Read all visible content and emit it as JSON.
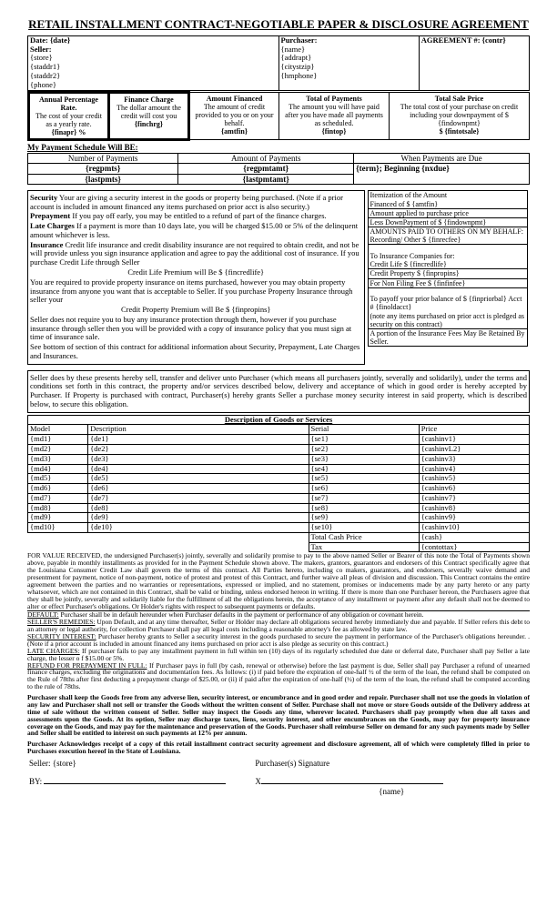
{
  "title": "RETAIL INSTALLMENT CONTRACT-NEGOTIABLE PAPER & DISCLOSURE AGREEMENT",
  "header": {
    "date_label": "Date:",
    "date": "{date}",
    "seller_label": "Seller:",
    "store": "{store}",
    "staddr1": "{staddr1}",
    "staddr2": "{staddr2}",
    "phone": "{phone}",
    "purchaser_label": "Purchaser:",
    "name": "{name}",
    "addrapt": "{addrapt}",
    "citystzip": "{citystzip}",
    "hmphone": "{hmphone}",
    "agreement_label": "AGREEMENT #:",
    "contr": "{contr}"
  },
  "tila": {
    "apr_head": "Annual Percentage Rate.",
    "apr_desc": "The cost of your credit as a yearly rate.",
    "apr_val": "{finapr}   %",
    "fc_head": "Finance Charge",
    "fc_desc": "The dollar amount the credit will cost you",
    "fc_val": "{finchrg}",
    "af_head": "Amount Financed",
    "af_desc": "The amount of credit provided to you or on your behalf.",
    "af_val": "{amtfin}",
    "top_head": "Total of Payments",
    "top_desc": "The amount you will have paid after you have made all payments as scheduled.",
    "top_val": "{fintop}",
    "tsp_head": "Total Sale Price",
    "tsp_desc": "The total cost of your purchase on credit including your downpayment of $ {findownpmt}",
    "tsp_val": "$ {fintotsale}"
  },
  "schedule": {
    "title": "My Payment Schedule Will BE:",
    "col1": "Number of Payments",
    "col2": "Amount of Payments",
    "col3": "When Payments are Due",
    "regpmts": "{regpmts}",
    "regpmtamt": "{regpmtamt}",
    "term_line": "{term}; Beginning  {nxdue}",
    "lastpmts": "{lastpmts}",
    "lastpmtamt": "{lastpmtamt}"
  },
  "security": {
    "sec_bold": "Security",
    "sec_text": "  Your are giving a security interest in the goods or property being purchased.  (Note if a prior account is included in amount financed any items purchased on prior acct is also security.)",
    "pre_bold": "Prepayment",
    "pre_text": "  If you pay off early, you may be entitled to a refund of part of the finance charges.",
    "late_bold": "Late Charges",
    "late_text": "  If a payment is more than 10 days late, you will be charged $15.00 or 5% of the delinquent amount whichever is less.",
    "ins_bold": "Insurance",
    "ins_text": "  Credit life insurance and credit disability insurance are not required to obtain credit, and not be will provide unless you sign insurance application  and agree to pay the additional cost of insurance.      If you purchase Credit Life through Seller",
    "cl_prem": "Credit Life Premium will Be  $ {fincredlife}",
    "prop_text": "You are required to provide property insurance on items purchased, however you may obtain property insurance from anyone you want that is acceptable to Seller.  If you purchase Property Insurance through seller your",
    "cp_prem": "Credit Property Premium will Be  $ {finpropins}",
    "seller_text": "Seller does not require you to buy any insurance protection through them, however if you purchase insurance through seller then you will be provided with a copy of insurance policy that you must sign at time of insurance sale.",
    "bottom_text": "See bottom of section of this contract for additional information about Security, Prepayment, Late Charges and Insurances."
  },
  "finbox": {
    "h1": "Itemization of the Amount",
    "h2": "Financed of                          $    {amtfin}",
    "amt_applied": "Amount applied to purchase price",
    "less_down": "Less DownPayment of    $  {findownpmt}",
    "amts_paid": "AMOUNTS PAID TO OTHERS ON MY BEHALF:",
    "rec_other": "Recording/ Other             $ {finrecfee}",
    "to_ins": "To Insurance Companies for:",
    "cl": "Credit Life                       $ {fincredlife}",
    "cp": "Credit Property               $ {finpropins}",
    "nf": "For Non Filing  Fee          $ {finfinfee}",
    "payoff": "To payoff your prior balance of  $ {finpriorbal}   Acct # {finoldacct}",
    "payoff_note": "(note any items purchased on prior acct is pledged as security on this contract)",
    "portion": "A portion of the Insurance Fees May Be Retained By Seller."
  },
  "transfer_para": "Seller does by these presents hereby sell, transfer and deliver unto Purchaser (which means all purchasers jointly, severally and solidarily), under the terms and conditions set forth in this contract, the property and/or services described below, delivery and acceptance of which in good order is hereby accepted by Purchaser.  If Property is purchased with contract, Purchaser(s) hereby grants Seller a purchase money security interest in said property, which is described below, to secure this obligation.",
  "goods": {
    "title": "Description of Goods or Services",
    "cols": {
      "model": "Model",
      "desc": "Description",
      "serial": "Serial",
      "price": "Price"
    },
    "rows": [
      {
        "m": "{md1}",
        "d": "{de1}",
        "s": "{se1}",
        "p": "{cashinv1}"
      },
      {
        "m": "{md2}",
        "d": "{de2}",
        "s": "{se2}",
        "p": "{cashinvL2}"
      },
      {
        "m": "{md3}",
        "d": "{de3}",
        "s": "{se3}",
        "p": "{cashinv3}"
      },
      {
        "m": "{md4}",
        "d": "{de4}",
        "s": "{se4}",
        "p": "{cashinv4}"
      },
      {
        "m": "{md5}",
        "d": "{de5}",
        "s": "{se5}",
        "p": "{cashinv5}"
      },
      {
        "m": "{md6}",
        "d": "{de6}",
        "s": "{se6}",
        "p": "{cashinv6}"
      },
      {
        "m": "{md7}",
        "d": "{de7}",
        "s": "{se7}",
        "p": "{cashinv7}"
      },
      {
        "m": "{md8}",
        "d": "{de8}",
        "s": "{se8}",
        "p": "{cashinv8}"
      },
      {
        "m": "{md9}",
        "d": "{de9}",
        "s": "{se9}",
        "p": "{cashinv9}"
      },
      {
        "m": "{md10}",
        "d": "{de10}",
        "s": "{se10}",
        "p": "{cashinv10}"
      }
    ],
    "tcp_label": "Total Cash Price",
    "tcp_val": "{cash}",
    "tax_label": "Tax",
    "tax_val": "{contottax}"
  },
  "terms": {
    "value_rec": "FOR VALUE RECEIVED, the undersigned Purchaser(s) jointly, severally and solidarily promise to pay to the above named Seller or Bearer of this note the Total of Payments shown above, payable in monthly installments as provided for in the  Payment Schedule shown above.  The makers, grantors, guarantors and endorsers of this Contract specifically agree that the Louisiana Consumer Credit Law shall govern the terms of this contract.  All Parties hereto, including co makers, guarantors, and endorsers, severally waive demand and presentment for payment, notice of non-payment, notice of protest and protest of this Contract, and further waive all pleas of division and discussion.  This Contract contains the entire agreement between the parties and no warranties or representations, expressed or implied, and no statement, promises or  inducements made by any party hereto or any party whatsoever, which are not contained in this Contract, shall be valid or binding, unless endorsed hereon in writing.  If there is more than one Purchaser hereon, the Purchasers agree that they shall be jointly, severally and solidarily liable for the fulfillment of all the obligations herein, the acceptance of any installment or payment after any default shall not be deemed to alter or effect Purchaser's obligations. Or Holder's rights with respect to subsequent payments or defaults.",
    "default_h": "DEFAULT:",
    "default_t": " Purchaser shall be in default hereunder when Purchaser defaults in the payment or performance of any obligation or covenant herein.",
    "remedies_h": "SELLER'S REMEDIES:",
    "remedies_t": " Upon Default, and at any time thereafter, Seller or Holder may declare all obligations secured hereby immediately due and payable.  If Seller refers this debt to an attorney or legal authority, for collection Purchaser shall pay all legal costs including a reasonable attorney's fee as allowed by state law.",
    "secint_h": "SECURITY INTEREST:",
    "secint_t": " Purchaser hereby grants to Seller a security interest in the goods purchased to secure the payment in performance of the Purchaser's obligations hereunder. .(Note if a prior account is included in amount financed any items purchased on prior acct is also pledge as security on this contract.)",
    "latec_h": "LATE CHARGES:",
    "latec_t": " If purchaser fails to pay any installment payment in full within ten (10) days of its regularly scheduled due date or deferral date, Purchaser shall pay Seller a late charge, the lesser o f $15.00 or 5%.",
    "refund_h": "REFUND FOR PREPAYMENT IN FULL:",
    "refund_t": " If Purchaser pays in full (by cash, renewal or otherwise) before the last payment is due, Seller shall pay Purchaser a refund of unearned finance charges, excluding the originations and documentation fees. As follows: (i) if paid before the expiration of one-half ½ of the term of the loan, the refund shall be computed on the Rule of 78ths after first deducting a prepayment charge of $25.00, or (ii) if paid after the expiration of one-half (½) of the term of the loan, the refund shall be computed according to the rule of 78ths.",
    "keep_goods": "Purchaser shall keep the Goods free from any adverse lien, security interest, or encumbrance and in good order and repair.  Purchaser shall not use the goods in violation of any law and Purchaser shall not sell or transfer the Goods without the written consent of Seller.  Purchase shall not move or store Goods outside of the Delivery address at time of sale without the written consent of Seller.  Seller may inspect the Goods any time, wherever located.  Purchasers shall pay promptly when due all taxes and assessments upon the Goods.  At its option, Seller may discharge taxes, liens, security interest, and other encumbrances on the Goods, may pay for property insurance coverage on the Goods, and may pay for the maintenance and preservation of the Goods.  Purchaser shall reimburse Seller on demand for any such payments made by Seller and Seller shall be entitled to interest on such payments at 12% per annum.",
    "ack": "Purchaser Acknowledges receipt of a copy of this retail installment contract security agreement and disclosure agreement, all of which were completely filled in prior to Purchases execution hereof in the State of Louisiana."
  },
  "sig": {
    "seller_label": "Seller: {store}",
    "purch_sig": "Purchaser(s) Signature",
    "by": "BY:",
    "x": "X",
    "name": "{name}"
  }
}
